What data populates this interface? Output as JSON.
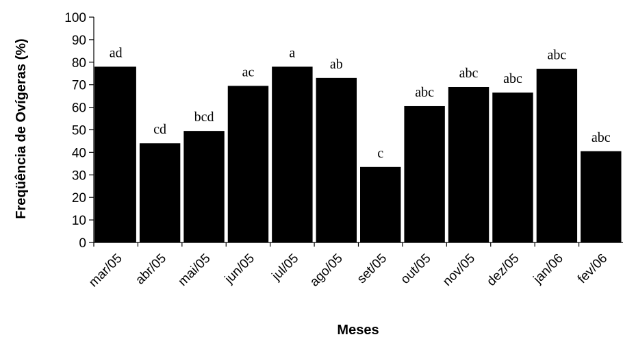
{
  "chart_data": {
    "type": "bar",
    "categories": [
      "mar/05",
      "abr/05",
      "mai/05",
      "jun/05",
      "jul/05",
      "ago/05",
      "set/05",
      "out/05",
      "nov/05",
      "dez/05",
      "jan/06",
      "fev/06"
    ],
    "values": [
      78,
      44,
      49.5,
      69.5,
      78,
      73,
      33.5,
      60.5,
      69,
      66.5,
      77,
      40.5
    ],
    "bar_labels": [
      "ad",
      "cd",
      "bcd",
      "ac",
      "a",
      "ab",
      "c",
      "abc",
      "abc",
      "abc",
      "abc",
      "abc"
    ],
    "xlabel": "Meses",
    "ylabel": "Freqüência de Ovígeras (%)",
    "ylim": [
      0,
      100
    ],
    "yticks": [
      0,
      10,
      20,
      30,
      40,
      50,
      60,
      70,
      80,
      90,
      100
    ],
    "bar_color": "#000000",
    "grid": false,
    "legend": "none"
  }
}
